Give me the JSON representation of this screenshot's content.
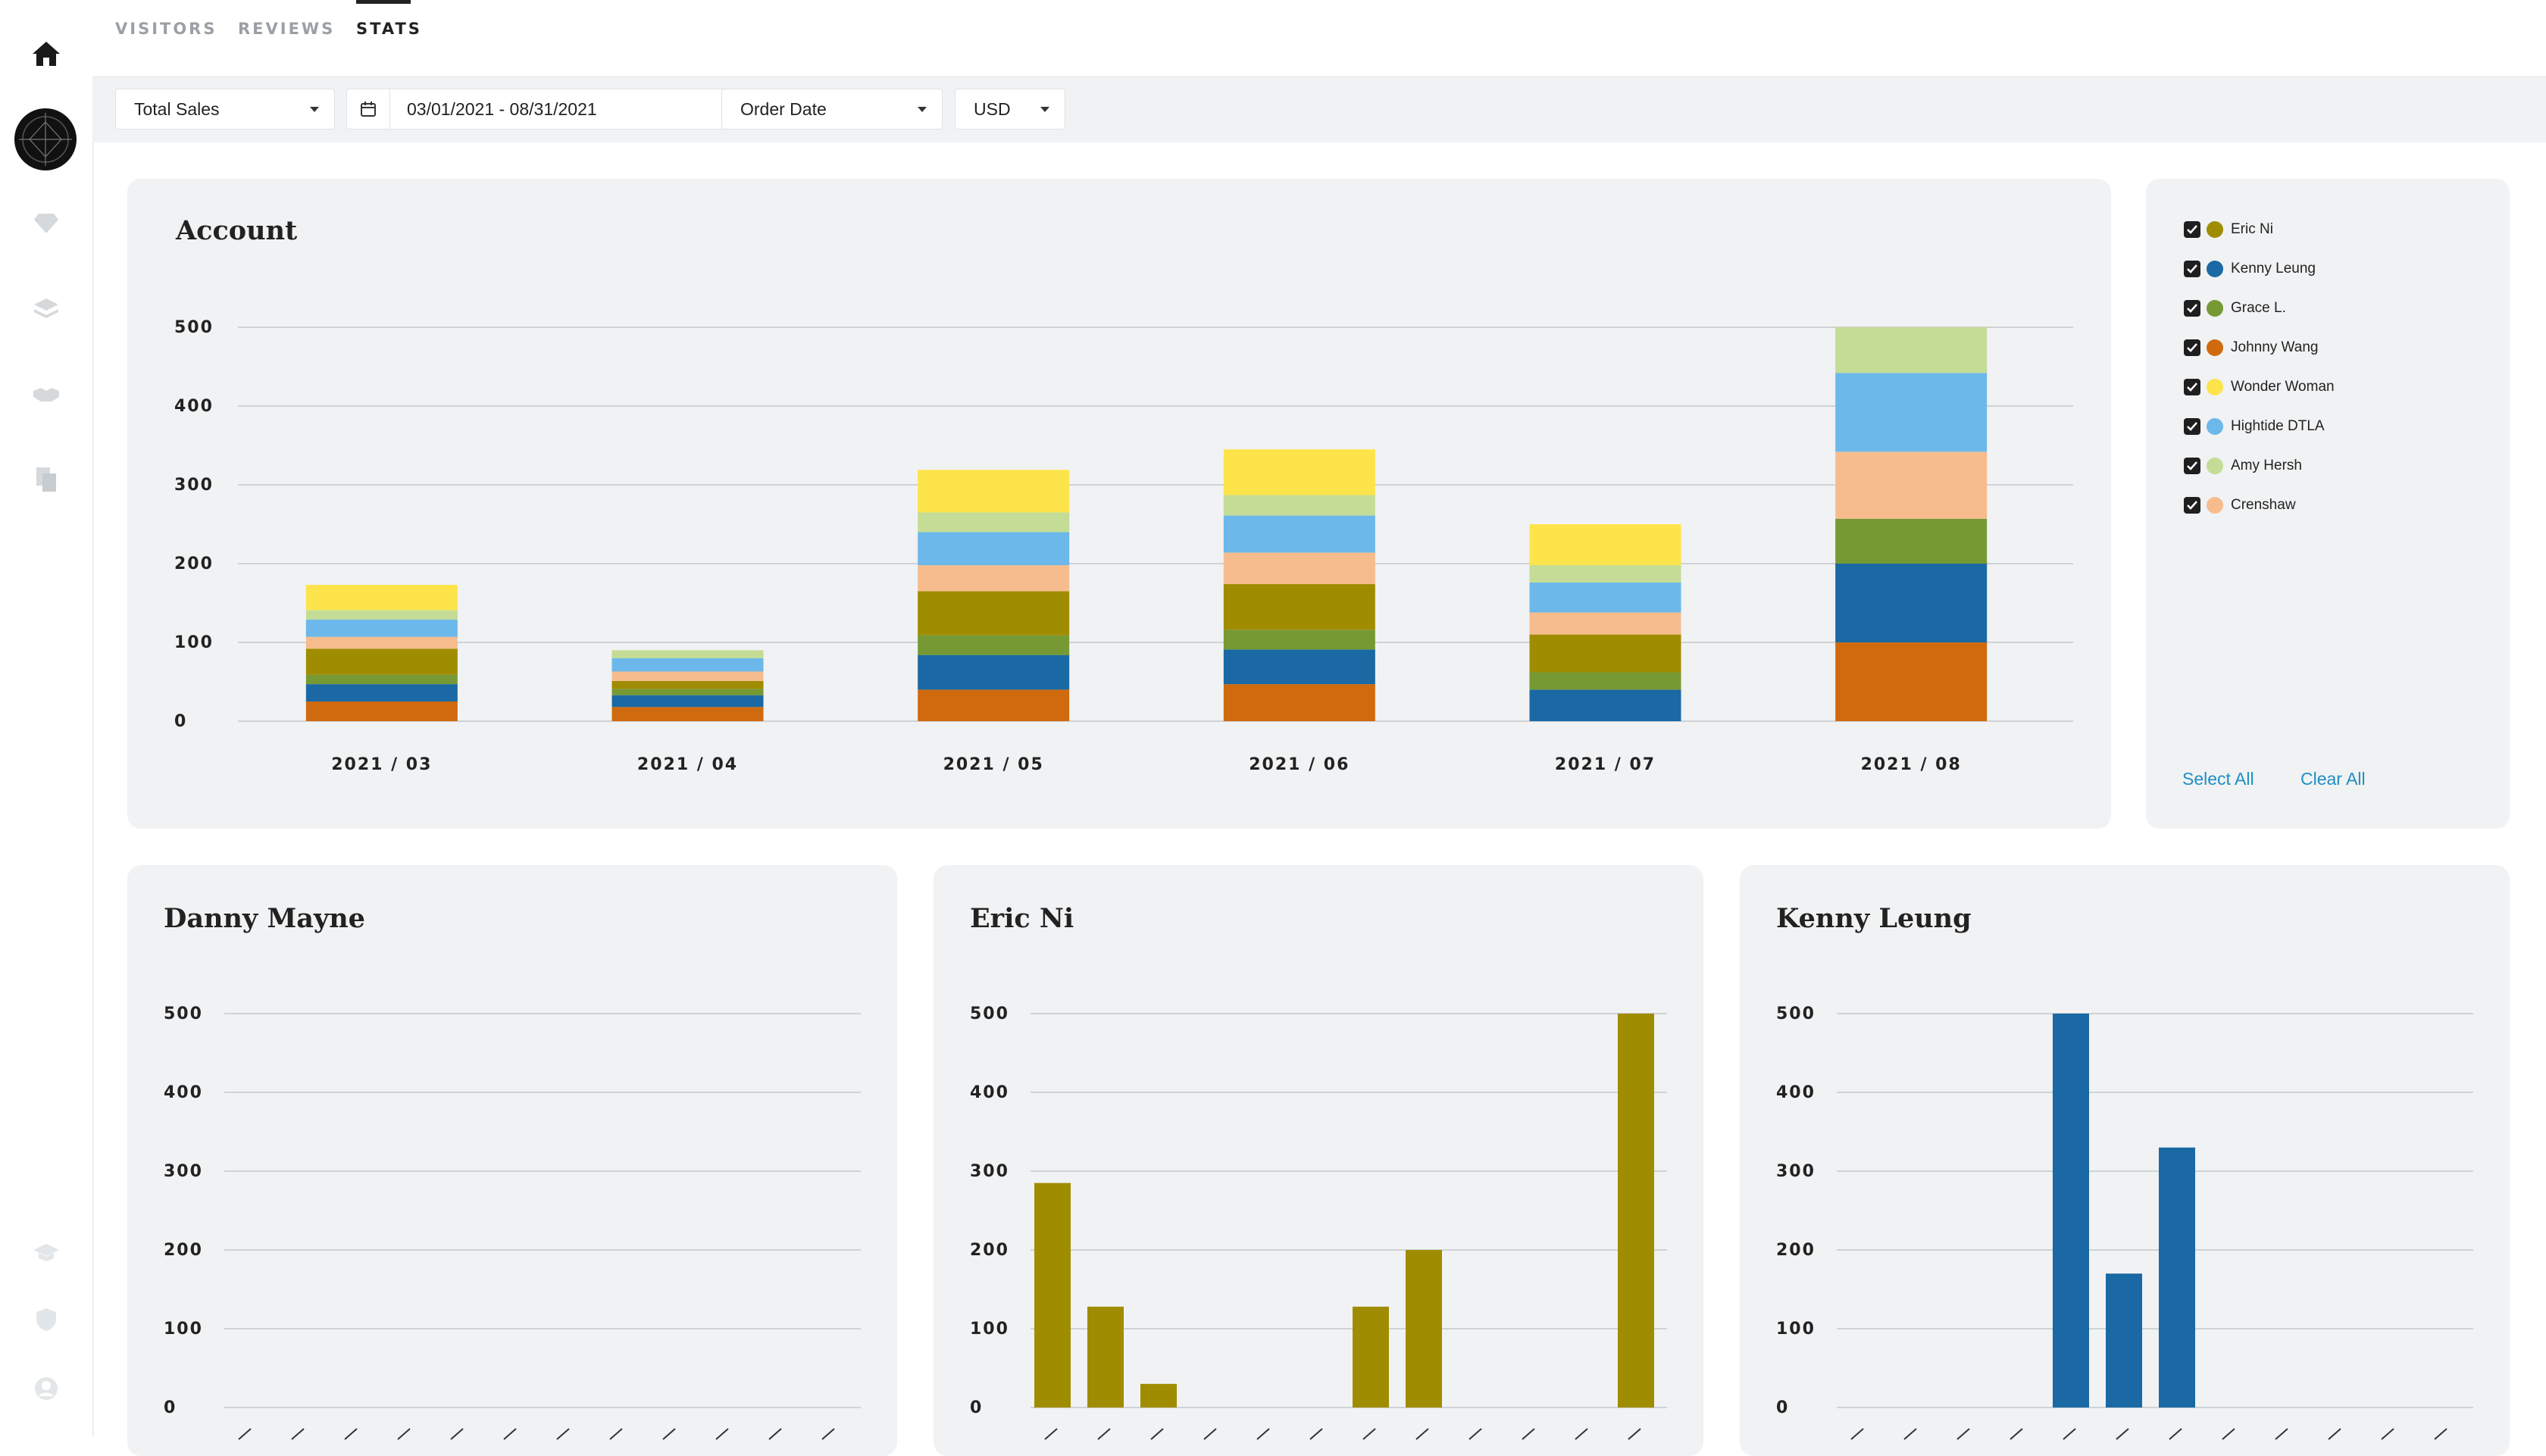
{
  "tabs": [
    {
      "label": "VISITORS",
      "active": false
    },
    {
      "label": "REVIEWS",
      "active": false
    },
    {
      "label": "STATS",
      "active": true
    }
  ],
  "sidebar": {
    "icons": [
      "home-icon",
      "logo",
      "diamond-icon",
      "layers-icon",
      "handshake-icon",
      "documents-icon",
      "graduation-cap-icon",
      "shield-icon",
      "user-icon"
    ]
  },
  "toolbar": {
    "metric": "Total Sales",
    "date_range": "03/01/2021 - 08/31/2021",
    "date_type": "Order Date",
    "currency": "USD"
  },
  "account_card": {
    "title": "Account"
  },
  "legend": {
    "items": [
      {
        "label": "Eric Ni",
        "color": "#a08c00",
        "checked": true
      },
      {
        "label": "Kenny Leung",
        "color": "#1a69a4",
        "checked": true
      },
      {
        "label": "Grace L.",
        "color": "#779933",
        "checked": true
      },
      {
        "label": "Johnny Wang",
        "color": "#d06a0f",
        "checked": true
      },
      {
        "label": "Wonder Woman",
        "color": "#fde44a",
        "checked": true
      },
      {
        "label": "Hightide DTLA",
        "color": "#6cb8ea",
        "checked": true
      },
      {
        "label": "Amy Hersh",
        "color": "#c4dc95",
        "checked": true
      },
      {
        "label": "Crenshaw",
        "color": "#f6bc8e",
        "checked": true
      }
    ],
    "select_all": "Select All",
    "clear_all": "Clear All"
  },
  "chart_data": [
    {
      "type": "bar",
      "stacked": true,
      "title": "Account",
      "categories": [
        "2021 / 03",
        "2021 / 04",
        "2021 / 05",
        "2021 / 06",
        "2021 / 07",
        "2021 / 08"
      ],
      "ylim": [
        0,
        500
      ],
      "yticks": [
        0,
        100,
        200,
        300,
        400,
        500
      ],
      "grid": true,
      "series": [
        {
          "name": "Johnny Wang",
          "color": "#d06a0f",
          "values": [
            25,
            18,
            40,
            47,
            0,
            100
          ]
        },
        {
          "name": "Kenny Leung",
          "color": "#1a69a4",
          "values": [
            22,
            15,
            44,
            44,
            40,
            100
          ]
        },
        {
          "name": "Grace L.",
          "color": "#779933",
          "values": [
            12,
            8,
            25,
            25,
            22,
            57
          ]
        },
        {
          "name": "Eric Ni",
          "color": "#a08c00",
          "values": [
            33,
            10,
            56,
            58,
            48,
            0
          ]
        },
        {
          "name": "Crenshaw",
          "color": "#f6bc8e",
          "values": [
            15,
            12,
            33,
            40,
            28,
            85
          ]
        },
        {
          "name": "Hightide DTLA",
          "color": "#6cb8ea",
          "values": [
            22,
            17,
            42,
            47,
            38,
            100
          ]
        },
        {
          "name": "Amy Hersh",
          "color": "#c4dc95",
          "values": [
            12,
            10,
            25,
            26,
            22,
            58
          ]
        },
        {
          "name": "Wonder Woman",
          "color": "#fde44a",
          "values": [
            32,
            0,
            54,
            58,
            52,
            0
          ]
        }
      ]
    },
    {
      "type": "bar",
      "title": "Danny Mayne",
      "ylim": [
        0,
        500
      ],
      "yticks": [
        0,
        100,
        200,
        300,
        400,
        500
      ],
      "grid": true,
      "series": [
        {
          "color": "#a08c00",
          "values": [
            0,
            0,
            0,
            0,
            0,
            0,
            0,
            0,
            0,
            0,
            0,
            0
          ]
        }
      ]
    },
    {
      "type": "bar",
      "title": "Eric Ni",
      "ylim": [
        0,
        500
      ],
      "yticks": [
        0,
        100,
        200,
        300,
        400,
        500
      ],
      "grid": true,
      "series": [
        {
          "color": "#a08c00",
          "values": [
            285,
            128,
            30,
            0,
            0,
            0,
            128,
            200,
            0,
            0,
            0,
            500
          ]
        }
      ]
    },
    {
      "type": "bar",
      "title": "Kenny Leung",
      "ylim": [
        0,
        500
      ],
      "yticks": [
        0,
        100,
        200,
        300,
        400,
        500
      ],
      "grid": true,
      "series": [
        {
          "color": "#1a69a4",
          "values": [
            0,
            0,
            0,
            0,
            500,
            170,
            330,
            0,
            0,
            0,
            0,
            0
          ]
        }
      ]
    }
  ]
}
